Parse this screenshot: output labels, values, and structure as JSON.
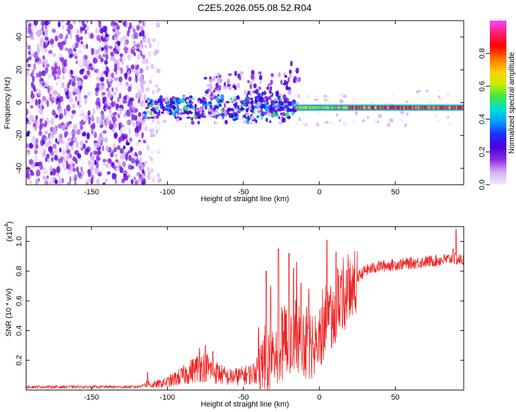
{
  "title": "C2E5.2026.055.08.52.R04",
  "colors": {
    "frame": "#000000",
    "snr_line": "#ee2222",
    "colormap": [
      "#f4ecff",
      "#d6aef8",
      "#8a2be2",
      "#4b00d8",
      "#2030ff",
      "#00a0ff",
      "#00e0d0",
      "#40e840",
      "#ccee00",
      "#ffcc00",
      "#ff7000",
      "#ff0000",
      "#ff2070",
      "#ff40ff"
    ]
  },
  "chart_data": [
    {
      "type": "heatmap",
      "name": "spectrogram",
      "xlabel": "Height of straight line (km)",
      "ylabel": "Frequency (Hz)",
      "xlim": [
        -193,
        95
      ],
      "ylim": [
        -50,
        50
      ],
      "xticks": [
        -150,
        -100,
        -50,
        0,
        50
      ],
      "yticks": [
        -40,
        -20,
        0,
        20,
        40
      ],
      "colorbar": {
        "label": "Normalized spectral amplitude",
        "range": [
          0.0,
          1.0
        ],
        "ticks": [
          0.0,
          0.2,
          0.4,
          0.6,
          0.8
        ],
        "tick_labels": [
          "0.0",
          "0.2",
          "0.4",
          "0.6",
          "0.8"
        ]
      },
      "features": {
        "noise_region_x": [
          -193,
          -115
        ],
        "noise_fringe_x": [
          -115,
          -105
        ],
        "band_center_hz": -3,
        "scattered_band_x": [
          -115,
          -15
        ],
        "coherent_line_x": [
          -15,
          95
        ]
      }
    },
    {
      "type": "line",
      "name": "snr",
      "xlabel": "Height of straight line (km)",
      "ylabel": "SNR (10 * v/v)",
      "scale_label": "(x10",
      "scale_exp": "4",
      "xlim": [
        -193,
        95
      ],
      "ylim": [
        0,
        1.1
      ],
      "xticks": [
        -150,
        -100,
        -50,
        0,
        50
      ],
      "yticks": [
        0.2,
        0.4,
        0.6,
        0.8,
        1.0
      ],
      "ytick_labels": [
        "0.2",
        "0.4",
        "0.6",
        "0.8",
        "1.0"
      ],
      "trend": [
        {
          "x": -193,
          "y": 0.02
        },
        {
          "x": -120,
          "y": 0.02
        },
        {
          "x": -113,
          "y": 0.04
        },
        {
          "x": -110,
          "y": 0.03
        },
        {
          "x": -100,
          "y": 0.05
        },
        {
          "x": -90,
          "y": 0.09
        },
        {
          "x": -80,
          "y": 0.14
        },
        {
          "x": -75,
          "y": 0.15
        },
        {
          "x": -70,
          "y": 0.12
        },
        {
          "x": -60,
          "y": 0.08
        },
        {
          "x": -50,
          "y": 0.09
        },
        {
          "x": -45,
          "y": 0.1
        },
        {
          "x": -40,
          "y": 0.13
        },
        {
          "x": -35,
          "y": 0.2
        },
        {
          "x": -30,
          "y": 0.26
        },
        {
          "x": -25,
          "y": 0.28
        },
        {
          "x": -20,
          "y": 0.3
        },
        {
          "x": -15,
          "y": 0.33
        },
        {
          "x": -10,
          "y": 0.3
        },
        {
          "x": -5,
          "y": 0.3
        },
        {
          "x": 0,
          "y": 0.36
        },
        {
          "x": 5,
          "y": 0.46
        },
        {
          "x": 10,
          "y": 0.53
        },
        {
          "x": 15,
          "y": 0.6
        },
        {
          "x": 20,
          "y": 0.68
        },
        {
          "x": 25,
          "y": 0.75
        },
        {
          "x": 30,
          "y": 0.8
        },
        {
          "x": 40,
          "y": 0.83
        },
        {
          "x": 50,
          "y": 0.84
        },
        {
          "x": 60,
          "y": 0.85
        },
        {
          "x": 70,
          "y": 0.86
        },
        {
          "x": 80,
          "y": 0.87
        },
        {
          "x": 88,
          "y": 0.88
        },
        {
          "x": 95,
          "y": 0.87
        }
      ],
      "spikes": [
        {
          "x": -113,
          "y": 0.12
        },
        {
          "x": -79,
          "y": 0.28
        },
        {
          "x": -75,
          "y": 0.3
        },
        {
          "x": -70,
          "y": 0.26
        },
        {
          "x": -40,
          "y": 0.42
        },
        {
          "x": -35,
          "y": 0.8
        },
        {
          "x": -32,
          "y": 0.7
        },
        {
          "x": -27,
          "y": 0.95
        },
        {
          "x": -20,
          "y": 0.92
        },
        {
          "x": -17,
          "y": 0.82
        },
        {
          "x": -15,
          "y": 0.86
        },
        {
          "x": -12,
          "y": 0.72
        },
        {
          "x": -7,
          "y": 0.68
        },
        {
          "x": 5,
          "y": 1.01
        },
        {
          "x": 11,
          "y": 0.93
        },
        {
          "x": 12,
          "y": 0.82
        },
        {
          "x": 88,
          "y": 0.95
        },
        {
          "x": 90,
          "y": 1.08
        }
      ]
    }
  ]
}
